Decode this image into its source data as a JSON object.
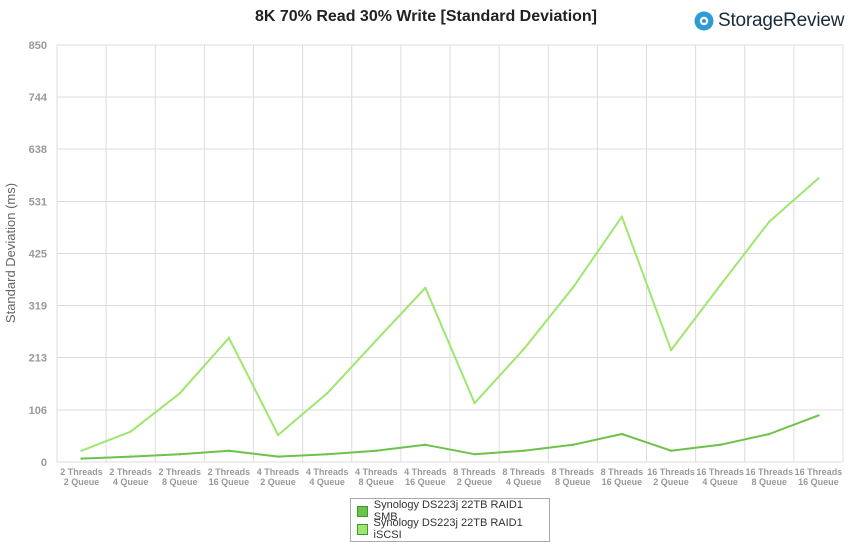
{
  "brand": {
    "name": "StorageReview",
    "accent": "#2e9bd6"
  },
  "chart_data": {
    "type": "line",
    "title": "8K 70% Read 30% Write [Standard Deviation]",
    "xlabel": "",
    "ylabel": "Standard Deviation (ms)",
    "ylim": [
      0,
      850
    ],
    "yticks": [
      "0",
      "106",
      "213",
      "319",
      "425",
      "531",
      "638",
      "744",
      "850"
    ],
    "grid": true,
    "legend_position": "bottom",
    "categories": [
      [
        "2 Threads",
        "2 Queue"
      ],
      [
        "2 Threads",
        "4 Queue"
      ],
      [
        "2 Threads",
        "8 Queue"
      ],
      [
        "2 Threads",
        "16 Queue"
      ],
      [
        "4 Threads",
        "2 Queue"
      ],
      [
        "4 Threads",
        "4 Queue"
      ],
      [
        "4 Threads",
        "8 Queue"
      ],
      [
        "4 Threads",
        "16 Queue"
      ],
      [
        "8 Threads",
        "2 Queue"
      ],
      [
        "8 Threads",
        "4 Queue"
      ],
      [
        "8 Threads",
        "8 Queue"
      ],
      [
        "8 Threads",
        "16 Queue"
      ],
      [
        "16 Threads",
        "2 Queue"
      ],
      [
        "16 Threads",
        "4 Queue"
      ],
      [
        "16 Threads",
        "8 Queue"
      ],
      [
        "16 Threads",
        "16 Queue"
      ]
    ],
    "series": [
      {
        "name": "Synology DS223j 22TB RAID1 SMB",
        "color": "#6cc24a",
        "values": [
          7,
          11,
          16,
          23,
          11,
          16,
          23,
          35,
          16,
          23,
          35,
          57,
          23,
          35,
          57,
          95
        ]
      },
      {
        "name": "Synology DS223j 22TB RAID1 iSCSI",
        "color": "#9ee66f",
        "values": [
          23,
          62,
          140,
          253,
          55,
          140,
          248,
          355,
          120,
          230,
          355,
          500,
          228,
          360,
          490,
          578
        ]
      }
    ]
  }
}
